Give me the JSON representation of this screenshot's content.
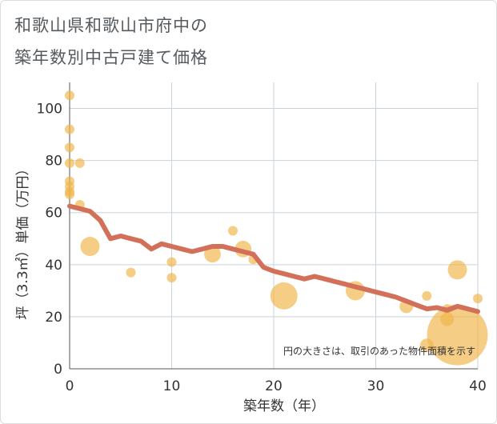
{
  "title_line1": "和歌山県和歌山市府中の",
  "title_line2": "築年数別中古戸建て価格",
  "chart_data": {
    "type": "scatter",
    "xlabel": "築年数（年）",
    "ylabel": "坪（3.3㎡）単価（万円）",
    "xlim": [
      0,
      40
    ],
    "ylim": [
      0,
      110
    ],
    "xticks": [
      0,
      10,
      20,
      30,
      40
    ],
    "yticks": [
      0,
      20,
      40,
      60,
      80,
      100
    ],
    "grid": true,
    "annotation": "円の大きさは、取引のあった物件面積を示す",
    "colors": {
      "bubble": "#f0b54a",
      "line": "#d2705a",
      "grid": "#c9d3dc"
    },
    "points": [
      {
        "x": 0,
        "y": 105,
        "size": 1
      },
      {
        "x": 0,
        "y": 92,
        "size": 1
      },
      {
        "x": 0,
        "y": 85,
        "size": 1
      },
      {
        "x": 0,
        "y": 79,
        "size": 1
      },
      {
        "x": 0,
        "y": 72,
        "size": 1
      },
      {
        "x": 0,
        "y": 70,
        "size": 1
      },
      {
        "x": 0,
        "y": 68,
        "size": 1
      },
      {
        "x": 0,
        "y": 67,
        "size": 1
      },
      {
        "x": 1,
        "y": 79,
        "size": 1
      },
      {
        "x": 1,
        "y": 63,
        "size": 1
      },
      {
        "x": 2,
        "y": 47,
        "size": 4
      },
      {
        "x": 6,
        "y": 37,
        "size": 1
      },
      {
        "x": 10,
        "y": 41,
        "size": 1
      },
      {
        "x": 10,
        "y": 35,
        "size": 1
      },
      {
        "x": 14,
        "y": 44,
        "size": 3
      },
      {
        "x": 16,
        "y": 53,
        "size": 1
      },
      {
        "x": 17,
        "y": 46,
        "size": 3
      },
      {
        "x": 18,
        "y": 42,
        "size": 1
      },
      {
        "x": 21,
        "y": 28,
        "size": 8
      },
      {
        "x": 28,
        "y": 30,
        "size": 4
      },
      {
        "x": 33,
        "y": 24,
        "size": 2
      },
      {
        "x": 35,
        "y": 28,
        "size": 1
      },
      {
        "x": 35,
        "y": 9,
        "size": 2
      },
      {
        "x": 37,
        "y": 23,
        "size": 1
      },
      {
        "x": 37,
        "y": 19,
        "size": 2
      },
      {
        "x": 38,
        "y": 38,
        "size": 4
      },
      {
        "x": 38,
        "y": 13,
        "size": 40
      },
      {
        "x": 40,
        "y": 27,
        "size": 1
      }
    ],
    "trend": {
      "x": [
        0,
        1,
        2,
        3,
        4,
        5,
        6,
        7,
        8,
        9,
        10,
        11,
        12,
        13,
        14,
        15,
        16,
        17,
        18,
        19,
        20,
        21,
        22,
        23,
        24,
        25,
        26,
        27,
        28,
        29,
        30,
        31,
        32,
        33,
        34,
        35,
        36,
        37,
        38,
        39,
        40
      ],
      "y": [
        62.5,
        61.5,
        60.5,
        57,
        50,
        51,
        50,
        49,
        46,
        48,
        47,
        46,
        45,
        46,
        47,
        47,
        46,
        45,
        44,
        39,
        37.5,
        36.5,
        35.5,
        34.5,
        35.5,
        34.5,
        33.5,
        32.5,
        31.5,
        30.5,
        29.5,
        28.5,
        27.5,
        26,
        24.5,
        23,
        23.5,
        22.5,
        24,
        23,
        22
      ]
    }
  }
}
